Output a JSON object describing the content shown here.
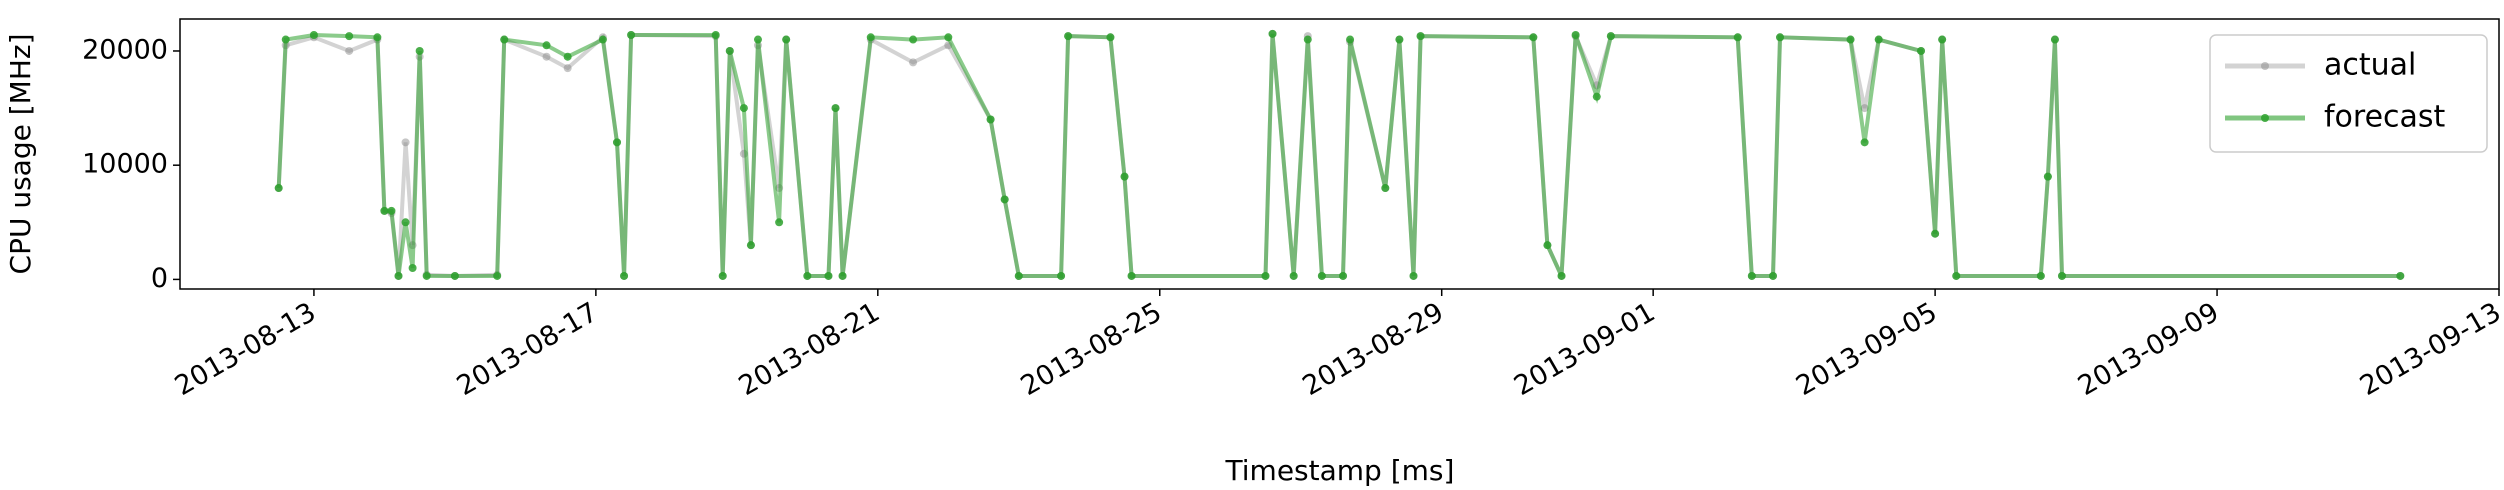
{
  "chart_data": {
    "type": "line",
    "x_label": "Timestamp [ms]",
    "y_label": "CPU usage [MHz]",
    "x": [
      1376308800000,
      1376317440000,
      1376352000000,
      1376395200000,
      1376429760000,
      1376438400000,
      1376447040000,
      1376455680000,
      1376464320000,
      1376472960000,
      1376481600000,
      1376490240000,
      1376524800000,
      1376576640000,
      1376585280000,
      1376637120000,
      1376663040000,
      1376706240000,
      1376723520000,
      1376732160000,
      1376740800000,
      1376844480000,
      1376853120000,
      1376861760000,
      1376879040000,
      1376887680000,
      1376896320000,
      1376922240000,
      1376930880000,
      1376956800000,
      1376982720000,
      1376991360000,
      1377000000000,
      1377034560000,
      1377086400000,
      1377129600000,
      1377181440000,
      1377198720000,
      1377216000000,
      1377267840000,
      1377276480000,
      1377328320000,
      1377345600000,
      1377354240000,
      1377518400000,
      1377527040000,
      1377552960000,
      1377570240000,
      1377587520000,
      1377613440000,
      1377622080000,
      1377665280000,
      1377682560000,
      1377699840000,
      1377708480000,
      1377846720000,
      1377864000000,
      1377881280000,
      1377898560000,
      1377924480000,
      1377941760000,
      1378097280000,
      1378114560000,
      1378140480000,
      1378149120000,
      1378235520000,
      1378252800000,
      1378270080000,
      1378321920000,
      1378339200000,
      1378347840000,
      1378365120000,
      1378468800000,
      1378477440000,
      1378486080000,
      1378494720000,
      1378909440000
    ],
    "series": [
      {
        "name": "actual",
        "color": "#808080",
        "values": [
          8000,
          20500,
          21200,
          20000,
          21000,
          6000,
          5800,
          300,
          12000,
          3000,
          19500,
          400,
          300,
          400,
          21000,
          19500,
          18500,
          21200,
          12000,
          300,
          21400,
          21300,
          300,
          20000,
          11000,
          3000,
          20500,
          8000,
          21000,
          300,
          300,
          15000,
          300,
          21000,
          19000,
          20500,
          14000,
          7000,
          300,
          300,
          21300,
          21200,
          9000,
          300,
          300,
          21500,
          300,
          21300,
          300,
          300,
          20800,
          8000,
          21000,
          300,
          21300,
          21200,
          3000,
          300,
          21300,
          17000,
          21300,
          21200,
          300,
          300,
          21200,
          21000,
          15000,
          21000,
          20000,
          4000,
          21000,
          300,
          300,
          9000,
          21000,
          300,
          300
        ]
      },
      {
        "name": "forecast",
        "color": "#2ca02c",
        "values": [
          8000,
          21000,
          21400,
          21300,
          21200,
          6000,
          6000,
          300,
          5000,
          1000,
          20000,
          300,
          300,
          300,
          21000,
          20500,
          19500,
          21000,
          12000,
          300,
          21400,
          21400,
          300,
          20000,
          15000,
          3000,
          21000,
          5000,
          21000,
          300,
          300,
          15000,
          300,
          21200,
          21000,
          21200,
          14000,
          7000,
          300,
          300,
          21300,
          21200,
          9000,
          300,
          300,
          21500,
          300,
          21000,
          300,
          300,
          21000,
          8000,
          21000,
          300,
          21300,
          21200,
          3000,
          300,
          21400,
          16000,
          21300,
          21200,
          300,
          300,
          21200,
          21000,
          12000,
          21000,
          20000,
          4000,
          21000,
          300,
          300,
          9000,
          21000,
          300,
          300
        ]
      }
    ],
    "xlim": [
      1376187840000,
      1379030400000
    ],
    "ylim": [
      -840,
      22800
    ],
    "xticks": [
      {
        "value": 1376352000000,
        "label": "2013-08-13"
      },
      {
        "value": 1376697600000,
        "label": "2013-08-17"
      },
      {
        "value": 1377043200000,
        "label": "2013-08-21"
      },
      {
        "value": 1377388800000,
        "label": "2013-08-25"
      },
      {
        "value": 1377734400000,
        "label": "2013-08-29"
      },
      {
        "value": 1377993600000,
        "label": "2013-09-01"
      },
      {
        "value": 1378339200000,
        "label": "2013-09-05"
      },
      {
        "value": 1378684800000,
        "label": "2013-09-09"
      },
      {
        "value": 1379030400000,
        "label": "2013-09-13"
      }
    ],
    "yticks": [
      0,
      10000,
      20000
    ],
    "grid": false,
    "legend": "upper right"
  }
}
